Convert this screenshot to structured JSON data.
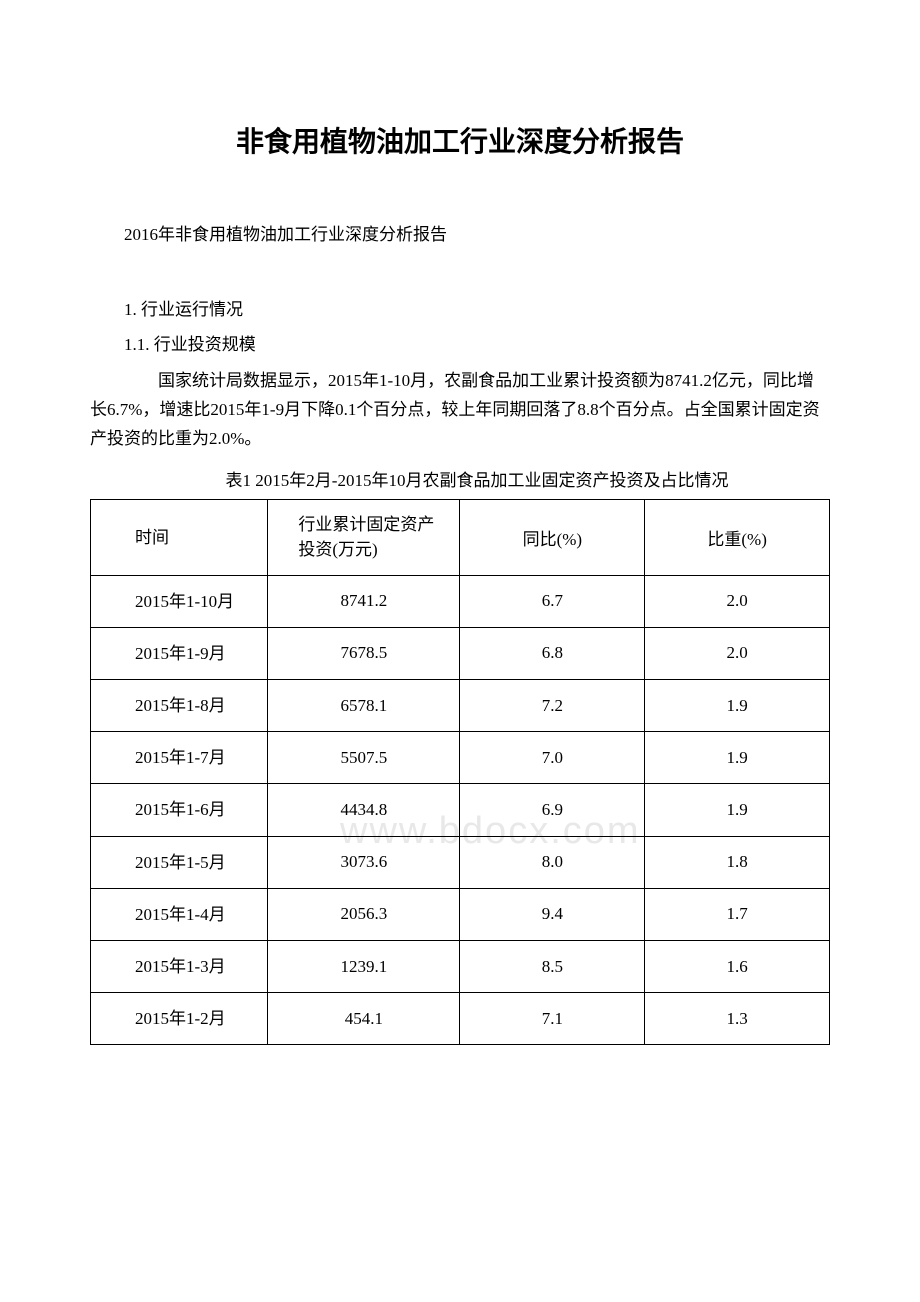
{
  "document": {
    "title": "非食用植物油加工行业深度分析报告",
    "subtitle": "2016年非食用植物油加工行业深度分析报告",
    "section1": "1. 行业运行情况",
    "section1_1": "1.1. 行业投资规模",
    "paragraph1": "　　国家统计局数据显示，2015年1-10月，农副食品加工业累计投资额为8741.2亿元，同比增长6.7%，增速比2015年1-9月下降0.1个百分点，较上年同期回落了8.8个百分点。占全国累计固定资产投资的比重为2.0%。",
    "table_caption": "表1 2015年2月-2015年10月农副食品加工业固定资产投资及占比情况",
    "watermark": "www.bdocx.com"
  },
  "table": {
    "headers": {
      "period": "时间",
      "investment": "行业累计固定资产投资(万元)",
      "yoy": "同比(%)",
      "weight": "比重(%)"
    },
    "rows": [
      {
        "period": "2015年1-10月",
        "investment": "8741.2",
        "yoy": "6.7",
        "weight": "2.0"
      },
      {
        "period": "2015年1-9月",
        "investment": "7678.5",
        "yoy": "6.8",
        "weight": "2.0"
      },
      {
        "period": "2015年1-8月",
        "investment": "6578.1",
        "yoy": "7.2",
        "weight": "1.9"
      },
      {
        "period": "2015年1-7月",
        "investment": "5507.5",
        "yoy": "7.0",
        "weight": "1.9"
      },
      {
        "period": "2015年1-6月",
        "investment": "4434.8",
        "yoy": "6.9",
        "weight": "1.9"
      },
      {
        "period": "2015年1-5月",
        "investment": "3073.6",
        "yoy": "8.0",
        "weight": "1.8"
      },
      {
        "period": "2015年1-4月",
        "investment": "2056.3",
        "yoy": "9.4",
        "weight": "1.7"
      },
      {
        "period": "2015年1-3月",
        "investment": "1239.1",
        "yoy": "8.5",
        "weight": "1.6"
      },
      {
        "period": "2015年1-2月",
        "investment": "454.1",
        "yoy": "7.1",
        "weight": "1.3"
      }
    ]
  },
  "styling": {
    "background_color": "#ffffff",
    "text_color": "#000000",
    "border_color": "#000000",
    "watermark_color": "#e8e8e8",
    "title_fontsize": 28,
    "body_fontsize": 17,
    "font_family": "SimSun"
  }
}
